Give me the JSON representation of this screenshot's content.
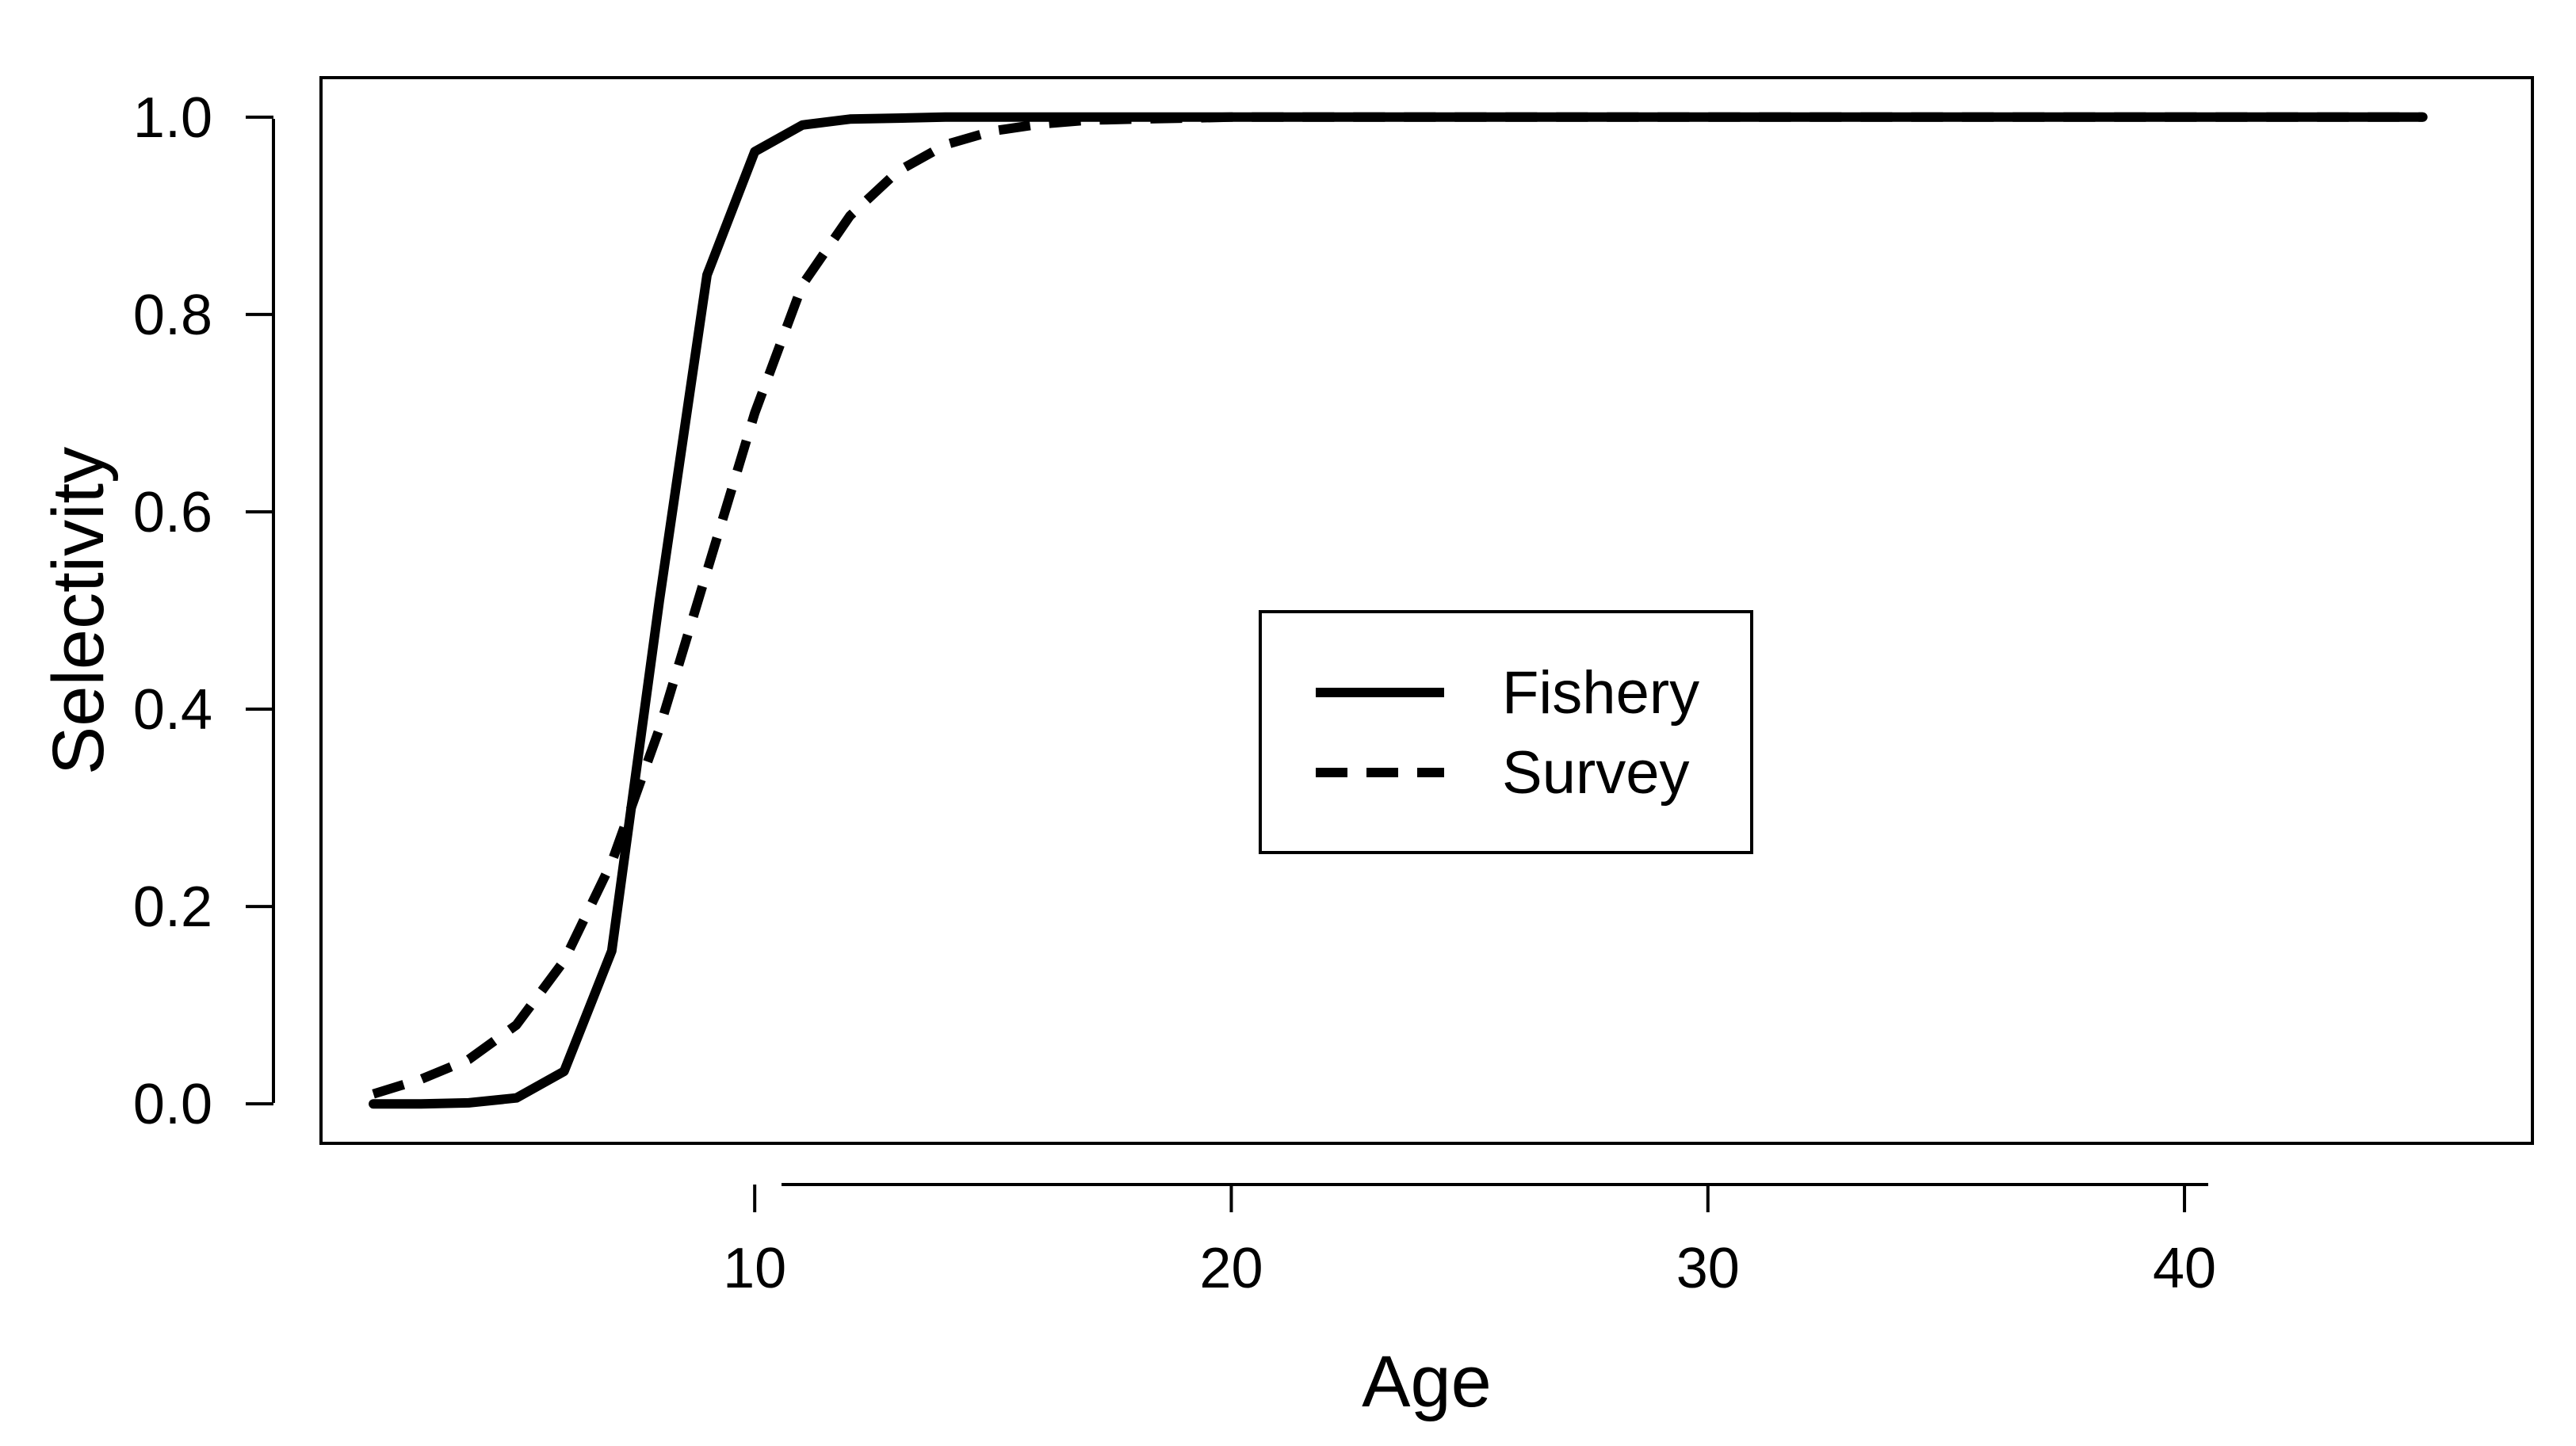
{
  "chart_data": {
    "type": "line",
    "title": "",
    "xlabel": "Age",
    "ylabel": "Selectivity",
    "xlim": [
      0.9,
      47.3
    ],
    "ylim": [
      -0.04,
      1.04
    ],
    "x_ticks": [
      10,
      20,
      30,
      40
    ],
    "y_ticks": [
      0.0,
      0.2,
      0.4,
      0.6,
      0.8,
      1.0
    ],
    "x_tick_labels": [
      "10",
      "20",
      "30",
      "40"
    ],
    "y_tick_labels": [
      "0.0",
      "0.2",
      "0.4",
      "0.6",
      "0.8",
      "1.0"
    ],
    "grid": false,
    "legend_position": "center",
    "colors": {
      "line": "#000000",
      "frame": "#000000",
      "background": "#ffffff"
    },
    "series": [
      {
        "name": "Fishery",
        "line_style": "solid",
        "x": [
          2,
          3,
          4,
          5,
          6,
          7,
          8,
          9,
          10,
          11,
          12,
          13,
          14,
          15,
          16,
          17,
          18,
          19,
          20,
          21,
          22,
          23,
          24,
          25,
          26,
          27,
          28,
          29,
          30,
          31,
          32,
          33,
          34,
          35,
          36,
          37,
          38,
          39,
          40,
          41,
          42,
          43,
          44,
          45
        ],
        "values": [
          0.0,
          0.0,
          0.001,
          0.006,
          0.033,
          0.155,
          0.51,
          0.84,
          0.965,
          0.992,
          0.998,
          0.999,
          1.0,
          1.0,
          1.0,
          1.0,
          1.0,
          1.0,
          1.0,
          1.0,
          1.0,
          1.0,
          1.0,
          1.0,
          1.0,
          1.0,
          1.0,
          1.0,
          1.0,
          1.0,
          1.0,
          1.0,
          1.0,
          1.0,
          1.0,
          1.0,
          1.0,
          1.0,
          1.0,
          1.0,
          1.0,
          1.0,
          1.0,
          1.0
        ]
      },
      {
        "name": "Survey",
        "line_style": "dashed",
        "x": [
          2,
          3,
          4,
          5,
          6,
          7,
          8,
          9,
          10,
          11,
          12,
          13,
          14,
          15,
          16,
          17,
          18,
          19,
          20,
          21,
          22,
          23,
          24,
          25,
          26,
          27,
          28,
          29,
          30,
          31,
          32,
          33,
          34,
          35,
          36,
          37,
          38,
          39,
          40,
          41,
          42,
          43,
          44,
          45
        ],
        "values": [
          0.01,
          0.025,
          0.045,
          0.08,
          0.145,
          0.245,
          0.38,
          0.54,
          0.7,
          0.83,
          0.9,
          0.945,
          0.972,
          0.986,
          0.993,
          0.997,
          0.998,
          0.999,
          1.0,
          1.0,
          1.0,
          1.0,
          1.0,
          1.0,
          1.0,
          1.0,
          1.0,
          1.0,
          1.0,
          1.0,
          1.0,
          1.0,
          1.0,
          1.0,
          1.0,
          1.0,
          1.0,
          1.0,
          1.0,
          1.0,
          1.0,
          1.0,
          1.0,
          1.0
        ]
      }
    ]
  }
}
